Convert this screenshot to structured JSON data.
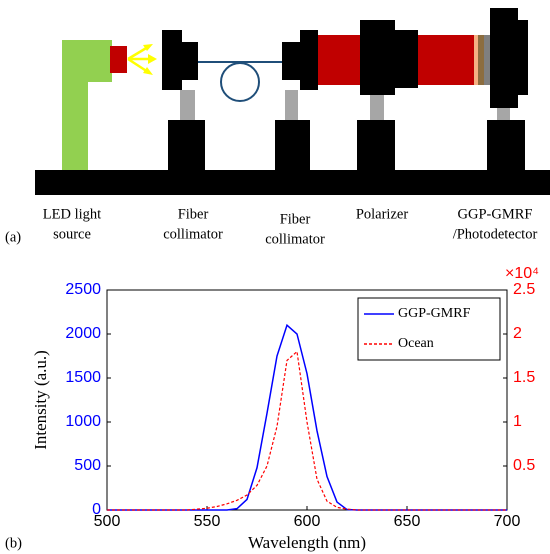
{
  "diagram": {
    "panel_label": "(a)",
    "labels": [
      [
        "LED light",
        "source"
      ],
      [
        "Fiber",
        "collimator"
      ],
      [
        "Fiber",
        "collimator"
      ],
      [
        "Polarizer"
      ],
      [
        "GGP-GMRF",
        "/Photodetector"
      ]
    ]
  },
  "chart_data": {
    "type": "line",
    "panel_label": "(b)",
    "x_label": "Wavelength (nm)",
    "y_label": "Intensity (a.u.)",
    "y2_multiplier": "×10⁴",
    "x": [
      500,
      505,
      510,
      515,
      520,
      525,
      530,
      535,
      540,
      545,
      550,
      555,
      560,
      565,
      570,
      575,
      580,
      585,
      590,
      595,
      600,
      605,
      610,
      615,
      620,
      625,
      630,
      635,
      640,
      645,
      650,
      655,
      660,
      665,
      670,
      675,
      680,
      685,
      690,
      695,
      700
    ],
    "series": [
      {
        "name": "GGP-GMRF",
        "color": "#0000ff",
        "dash": false,
        "axis": "y",
        "values": [
          0,
          0,
          0,
          0,
          0,
          0,
          0,
          0,
          0,
          0,
          0,
          0,
          0,
          15,
          120,
          480,
          1100,
          1750,
          2100,
          2000,
          1550,
          900,
          380,
          90,
          5,
          0,
          0,
          0,
          0,
          0,
          0,
          0,
          0,
          0,
          0,
          0,
          0,
          0,
          0,
          0,
          0
        ]
      },
      {
        "name": "Ocean",
        "color": "#ff0000",
        "dash": true,
        "axis": "y2",
        "values": [
          0,
          0,
          0,
          0,
          0,
          0,
          0,
          0,
          0,
          100,
          200,
          400,
          700,
          1100,
          1700,
          2800,
          5000,
          9500,
          17000,
          18000,
          10000,
          3500,
          1000,
          300,
          100,
          0,
          0,
          0,
          0,
          0,
          0,
          0,
          0,
          0,
          0,
          0,
          0,
          0,
          0,
          0,
          0
        ]
      }
    ],
    "xlim": [
      500,
      700
    ],
    "xticks": [
      500,
      550,
      600,
      650,
      700
    ],
    "ylim": [
      0,
      2500
    ],
    "yticks": [
      0,
      500,
      1000,
      1500,
      2000,
      2500
    ],
    "y_color": "#0000ff",
    "y2lim": [
      0,
      25000
    ],
    "y2ticks": [
      {
        "value": 5000,
        "label": "0.5"
      },
      {
        "value": 10000,
        "label": "1"
      },
      {
        "value": 15000,
        "label": "1.5"
      },
      {
        "value": 20000,
        "label": "2"
      },
      {
        "value": 25000,
        "label": "2.5"
      }
    ],
    "y2_color": "#ff0000",
    "legend": "upper right"
  }
}
